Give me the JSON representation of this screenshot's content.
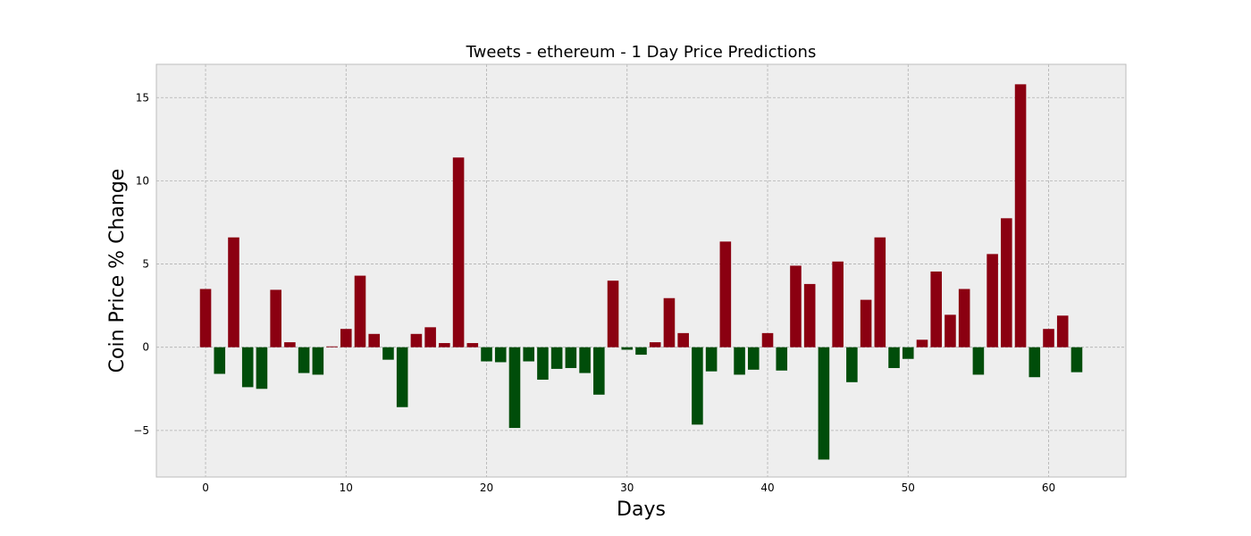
{
  "chart_data": {
    "type": "bar",
    "title": "Tweets - ethereum - 1 Day Price Predictions",
    "xlabel": "Days",
    "ylabel": "Coin Price % Change",
    "xlim": [
      -3.5,
      65.5
    ],
    "ylim": [
      -7.8,
      17
    ],
    "xticks": [
      0,
      10,
      20,
      30,
      40,
      50,
      60
    ],
    "yticks": [
      -5,
      0,
      5,
      10,
      15
    ],
    "ytick_labels": [
      "−5",
      "0",
      "5",
      "10",
      "15"
    ],
    "grid": true,
    "positive_color": "#8b0011",
    "negative_color": "#004d0a",
    "background_color": "#eeeeee",
    "x": [
      0,
      1,
      2,
      3,
      4,
      5,
      6,
      7,
      8,
      9,
      10,
      11,
      12,
      13,
      14,
      15,
      16,
      17,
      18,
      19,
      20,
      21,
      22,
      23,
      24,
      25,
      26,
      27,
      28,
      29,
      30,
      31,
      32,
      33,
      34,
      35,
      36,
      37,
      38,
      39,
      40,
      41,
      42,
      43,
      44,
      45,
      46,
      47,
      48,
      49,
      50,
      51,
      52,
      53,
      54,
      55,
      56,
      57,
      58,
      59,
      60,
      61,
      62
    ],
    "values": [
      3.5,
      -1.6,
      6.6,
      -2.4,
      -2.5,
      3.45,
      0.3,
      -1.55,
      -1.65,
      0.05,
      1.1,
      4.3,
      0.8,
      -0.75,
      -3.6,
      0.8,
      1.2,
      0.25,
      11.4,
      0.25,
      -0.85,
      -0.9,
      -4.85,
      -0.85,
      -1.95,
      -1.3,
      -1.25,
      -1.55,
      -2.85,
      4.0,
      -0.15,
      -0.45,
      0.3,
      2.95,
      0.85,
      -4.65,
      -1.45,
      6.35,
      -1.65,
      -1.35,
      0.85,
      -1.4,
      4.9,
      3.8,
      -6.75,
      5.15,
      -2.1,
      2.85,
      6.6,
      -1.25,
      -0.7,
      0.45,
      4.55,
      1.95,
      3.5,
      -1.65,
      5.6,
      7.75,
      15.8,
      -1.8,
      1.1,
      1.9,
      -1.5
    ]
  }
}
